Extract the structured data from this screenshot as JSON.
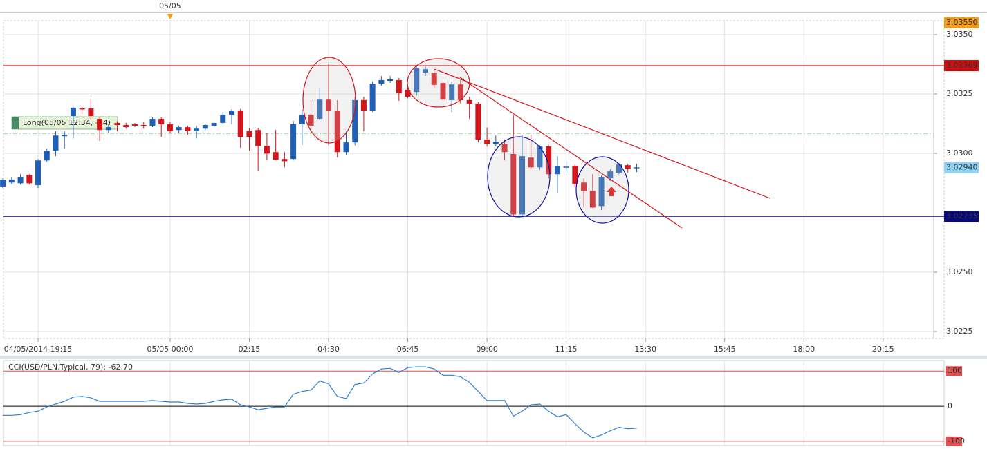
{
  "chart_data": [
    {
      "type": "candlestick",
      "x": [
        -4,
        -3,
        -2,
        -1,
        0,
        1,
        2,
        3,
        4,
        5,
        6,
        7,
        8,
        9,
        10,
        11,
        12,
        13,
        14,
        15,
        16,
        17,
        18,
        19,
        20,
        21,
        22,
        23,
        24,
        25,
        26,
        27,
        28,
        29,
        30,
        31,
        32,
        33,
        34,
        35,
        36,
        37,
        38,
        39,
        40,
        41,
        42,
        43,
        44,
        45,
        46,
        47,
        48,
        49,
        50,
        51,
        52,
        53,
        54,
        55,
        56,
        57,
        58,
        59,
        60,
        61,
        62,
        63,
        64,
        65,
        66,
        67,
        68
      ],
      "open": [
        3.0286,
        3.02877,
        3.02874,
        3.02909,
        3.02866,
        3.0297,
        3.03011,
        3.03072,
        3.03157,
        3.03189,
        3.03189,
        3.03145,
        3.03098,
        3.03128,
        3.03119,
        3.03122,
        3.03119,
        3.03116,
        3.03145,
        3.03122,
        3.03098,
        3.0311,
        3.03093,
        3.03104,
        3.03116,
        3.03128,
        3.03162,
        3.0318,
        3.03093,
        3.03098,
        3.03031,
        3.03005,
        3.02976,
        3.02976,
        3.03122,
        3.03162,
        3.03145,
        3.03226,
        3.0318,
        3.03005,
        3.03046,
        3.03224,
        3.0318,
        3.03293,
        3.03305,
        3.03308,
        3.03267,
        3.03258,
        3.0334,
        3.03337,
        3.03296,
        3.03224,
        3.0329,
        3.03224,
        3.03209,
        3.03058,
        3.0304,
        3.0304,
        3.02997,
        3.02743,
        3.02982,
        3.02941,
        3.03029,
        3.02912,
        3.02941,
        3.02947,
        3.02877,
        3.02842,
        3.02778,
        3.02895,
        3.02918,
        3.0295,
        3.02938
      ],
      "high": [
        3.02895,
        3.02901,
        3.02912,
        3.02912,
        3.02976,
        3.0302,
        3.03093,
        3.03093,
        3.03194,
        3.03194,
        3.03229,
        3.03151,
        3.03122,
        3.03136,
        3.03128,
        3.03128,
        3.03133,
        3.03151,
        3.03151,
        3.03133,
        3.03116,
        3.03116,
        3.03116,
        3.03122,
        3.03133,
        3.03174,
        3.03186,
        3.03186,
        3.03104,
        3.03107,
        3.03087,
        3.03098,
        3.03005,
        3.03136,
        3.03186,
        3.03224,
        3.03273,
        3.03378,
        3.03224,
        3.03093,
        3.03238,
        3.03238,
        3.03302,
        3.03325,
        3.03325,
        3.03317,
        3.03282,
        3.03369,
        3.03366,
        3.03354,
        3.03302,
        3.03302,
        3.03314,
        3.03238,
        3.03215,
        3.03107,
        3.03075,
        3.03058,
        3.03162,
        3.03075,
        3.03078,
        3.03034,
        3.03034,
        3.02988,
        3.0297,
        3.02953,
        3.02895,
        3.02912,
        3.02906,
        3.02933,
        3.02959,
        3.02956,
        3.02956
      ],
      "low": [
        3.02854,
        3.02871,
        3.02869,
        3.02869,
        3.02854,
        3.02965,
        3.02988,
        3.0302,
        3.03063,
        3.03165,
        3.03145,
        3.03052,
        3.03087,
        3.03093,
        3.03104,
        3.0311,
        3.03104,
        3.0311,
        3.03069,
        3.03087,
        3.03087,
        3.03078,
        3.03063,
        3.03098,
        3.0311,
        3.03122,
        3.03122,
        3.03023,
        3.03011,
        3.02924,
        3.0297,
        3.0297,
        3.02941,
        3.0297,
        3.03034,
        3.03107,
        3.03139,
        3.03034,
        3.02982,
        3.02994,
        3.03034,
        3.03093,
        3.03174,
        3.03285,
        3.03296,
        3.03221,
        3.03232,
        3.03244,
        3.03325,
        3.03273,
        3.03215,
        3.03174,
        3.03209,
        3.03145,
        3.03046,
        3.03029,
        3.03029,
        3.0297,
        3.02738,
        3.02738,
        3.02933,
        3.0293,
        3.02895,
        3.02831,
        3.02918,
        3.0286,
        3.02772,
        3.0277,
        3.02761,
        3.02883,
        3.02912,
        3.02918,
        3.02921
      ],
      "close": [
        3.02889,
        3.02889,
        3.02901,
        3.02874,
        3.0297,
        3.03011,
        3.03075,
        3.03078,
        3.03192,
        3.03186,
        3.03157,
        3.03098,
        3.0311,
        3.03119,
        3.0311,
        3.03116,
        3.03116,
        3.03145,
        3.03122,
        3.03093,
        3.0311,
        3.03093,
        3.03104,
        3.03119,
        3.03128,
        3.03162,
        3.0318,
        3.03069,
        3.03069,
        3.03031,
        3.02999,
        3.02973,
        3.02967,
        3.03122,
        3.03162,
        3.03116,
        3.03226,
        3.0318,
        3.03005,
        3.03046,
        3.03224,
        3.0318,
        3.03293,
        3.03308,
        3.03311,
        3.03253,
        3.03238,
        3.0336,
        3.03354,
        3.03288,
        3.03226,
        3.0329,
        3.03224,
        3.03209,
        3.03058,
        3.0304,
        3.03049,
        3.03005,
        3.02743,
        3.02988,
        3.02941,
        3.03029,
        3.02912,
        3.02947,
        3.02944,
        3.02871,
        3.02842,
        3.02772,
        3.02901,
        3.02924,
        3.02953,
        3.02935,
        3.02941
      ],
      "up_color": "#1f5fb5",
      "down_color": "#d5141b",
      "xlim": [
        -3.93,
        101.75
      ],
      "xticks": [
        {
          "value": 0,
          "label": "04/05/2014 19:15"
        },
        {
          "value": 15,
          "label": "05/05 00:00"
        },
        {
          "value": 24,
          "label": "02:15"
        },
        {
          "value": 33,
          "label": "04:30"
        },
        {
          "value": 42,
          "label": "06:45"
        },
        {
          "value": 51,
          "label": "09:00"
        },
        {
          "value": 60,
          "label": "11:15"
        },
        {
          "value": 69,
          "label": "13:30"
        },
        {
          "value": 78,
          "label": "15:45"
        },
        {
          "value": 87,
          "label": "18:00"
        },
        {
          "value": 96,
          "label": "20:15"
        }
      ],
      "ylim": [
        3.02221,
        3.03558
      ],
      "yticks": [
        {
          "value": 3.035,
          "label": "3.0350"
        },
        {
          "value": 3.0325,
          "label": "3.0325"
        },
        {
          "value": 3.03,
          "label": "3.0300"
        },
        {
          "value": 3.025,
          "label": "3.0250"
        },
        {
          "value": 3.0225,
          "label": "3.0225"
        }
      ],
      "grid": true,
      "day_marker": "05/05",
      "price_lines": [
        {
          "price": 3.0355,
          "label": "3.03550",
          "color": "#f29b1c",
          "text_color": "#222222",
          "show_line": false
        },
        {
          "price": 3.03369,
          "color": "#cc1010",
          "text_color": "#ffffff",
          "show_line": true
        },
        {
          "price": 3.0294,
          "label": "3.02940",
          "color": "#8fd3f4",
          "text_color": "#222222",
          "show_line": false
        },
        {
          "price": 3.02735,
          "color": "#0a0a80",
          "text_color": "#ffffff",
          "show_line": true
        }
      ],
      "position": {
        "label": "Long(05/05 12:34, -14)",
        "price": 3.03084,
        "color": "#8cc08c"
      }
    },
    {
      "type": "line",
      "title": "CCI(USD/PLN.Typical, 79): -62.70",
      "values": [
        -26,
        -26,
        -24,
        -18,
        -14,
        -2,
        6,
        14,
        26,
        28,
        24,
        14,
        14,
        14,
        14,
        14,
        14,
        16,
        14,
        12,
        12,
        8,
        6,
        8,
        14,
        18,
        20,
        4,
        -2,
        -10,
        -6,
        -2,
        -2,
        34,
        42,
        46,
        72,
        64,
        28,
        22,
        62,
        66,
        92,
        106,
        108,
        96,
        110,
        112,
        112,
        106,
        88,
        88,
        84,
        68,
        42,
        16,
        16,
        16,
        -28,
        -14,
        4,
        6,
        -14,
        -30,
        -24,
        -50,
        -74,
        -90,
        -82,
        -70,
        -60,
        -64,
        -62.7
      ],
      "color": "#2a7fd4",
      "ylim": [
        -112,
        130
      ],
      "yticks": [
        100,
        0,
        -100
      ],
      "level_colors": [
        "#e05050",
        "#000000",
        "#e05050"
      ]
    }
  ]
}
